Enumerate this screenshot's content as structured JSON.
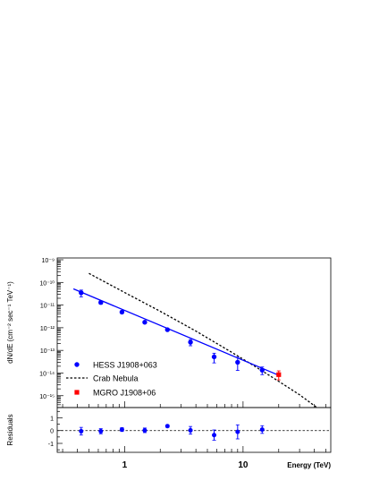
{
  "chart_data": {
    "type": "scatter",
    "xscale": "log",
    "xlim": [
      0.27,
      55
    ],
    "xlabel": "Energy (TeV)",
    "x_ticks": [
      {
        "value": 1,
        "label": "1"
      },
      {
        "value": 10,
        "label": "10"
      }
    ],
    "upper": {
      "yscale": "log",
      "ylim": [
        3e-16,
        1.2e-09
      ],
      "ylabel": "dN/dE (cm⁻² sec⁻¹ TeV⁻¹)",
      "y_ticks": [
        {
          "value": 1e-09,
          "label": "10⁻⁹"
        },
        {
          "value": 1e-10,
          "label": "10⁻¹⁰"
        },
        {
          "value": 1e-11,
          "label": "10⁻¹¹"
        },
        {
          "value": 1e-12,
          "label": "10⁻¹²"
        },
        {
          "value": 1e-13,
          "label": "10⁻¹³"
        },
        {
          "value": 1e-14,
          "label": "10⁻¹⁴"
        },
        {
          "value": 1e-15,
          "label": "10⁻¹⁵"
        }
      ],
      "series": [
        {
          "name": "HESS J1908+063",
          "color": "#0000ff",
          "marker": "circle",
          "points": [
            {
              "x": 0.43,
              "y": 3.5e-11,
              "ylo": 2.3e-11,
              "yhi": 4.6e-11
            },
            {
              "x": 0.63,
              "y": 1.3e-11,
              "ylo": 1.1e-11,
              "yhi": 1.5e-11
            },
            {
              "x": 0.95,
              "y": 4.9e-12,
              "ylo": 4.3e-12,
              "yhi": 5.5e-12
            },
            {
              "x": 1.48,
              "y": 1.75e-12,
              "ylo": 1.55e-12,
              "yhi": 1.95e-12
            },
            {
              "x": 2.3,
              "y": 8.2e-13,
              "ylo": 7.5e-13,
              "yhi": 9e-13
            },
            {
              "x": 3.6,
              "y": 2.3e-13,
              "ylo": 1.6e-13,
              "yhi": 3e-13
            },
            {
              "x": 5.7,
              "y": 5.2e-14,
              "ylo": 2.8e-14,
              "yhi": 7.5e-14
            },
            {
              "x": 9.0,
              "y": 3e-14,
              "ylo": 1.3e-14,
              "yhi": 5e-14
            },
            {
              "x": 14.5,
              "y": 1.35e-14,
              "ylo": 8.5e-15,
              "yhi": 1.85e-14
            }
          ]
        },
        {
          "name": "MGRO J1908+06",
          "color": "#ff0000",
          "marker": "square",
          "points": [
            {
              "x": 20,
              "y": 8.5e-15,
              "ylo": 5e-15,
              "yhi": 1.25e-14
            }
          ]
        }
      ],
      "fit_line": {
        "color": "#0000ff",
        "x": [
          0.37,
          20
        ],
        "y": [
          5.2e-11,
          8e-15
        ]
      },
      "reference_curve": {
        "name": "Crab Nebula",
        "style": "dashed",
        "color": "#000000",
        "x": [
          0.5,
          1,
          2,
          4,
          8,
          12,
          16,
          20,
          30,
          45,
          55
        ],
        "y": [
          2.5e-10,
          3.6e-11,
          5.3e-12,
          7.1e-13,
          8.3e-14,
          2.3e-14,
          9e-15,
          4.3e-15,
          1.1e-15,
          2.3e-16,
          9e-17
        ]
      },
      "legend": {
        "position": "bottom-left",
        "entries": [
          {
            "label": "HESS J1908+063",
            "marker": "circle",
            "color": "#0000ff"
          },
          {
            "label": "Crab Nebula",
            "marker": "dashed-line",
            "color": "#000000"
          },
          {
            "label": "MGRO J1908+06",
            "marker": "square",
            "color": "#ff0000"
          }
        ]
      }
    },
    "lower": {
      "ylabel": "Residuals",
      "ylim": [
        -1.7,
        1.8
      ],
      "reference_line": 0,
      "y_ticks": [
        {
          "value": 1,
          "label": "1"
        },
        {
          "value": 0,
          "label": "0"
        },
        {
          "value": -1,
          "label": "-1"
        }
      ],
      "points": [
        {
          "x": 0.43,
          "y": -0.05,
          "err": 0.3
        },
        {
          "x": 0.63,
          "y": -0.05,
          "err": 0.2
        },
        {
          "x": 0.95,
          "y": 0.08,
          "err": 0.15
        },
        {
          "x": 1.48,
          "y": 0.02,
          "err": 0.18
        },
        {
          "x": 2.3,
          "y": 0.35,
          "err": 0.1
        },
        {
          "x": 3.6,
          "y": 0.02,
          "err": 0.3
        },
        {
          "x": 5.7,
          "y": -0.35,
          "err": 0.4
        },
        {
          "x": 9.0,
          "y": -0.1,
          "err": 0.55
        },
        {
          "x": 14.5,
          "y": 0.08,
          "err": 0.3
        }
      ]
    }
  }
}
